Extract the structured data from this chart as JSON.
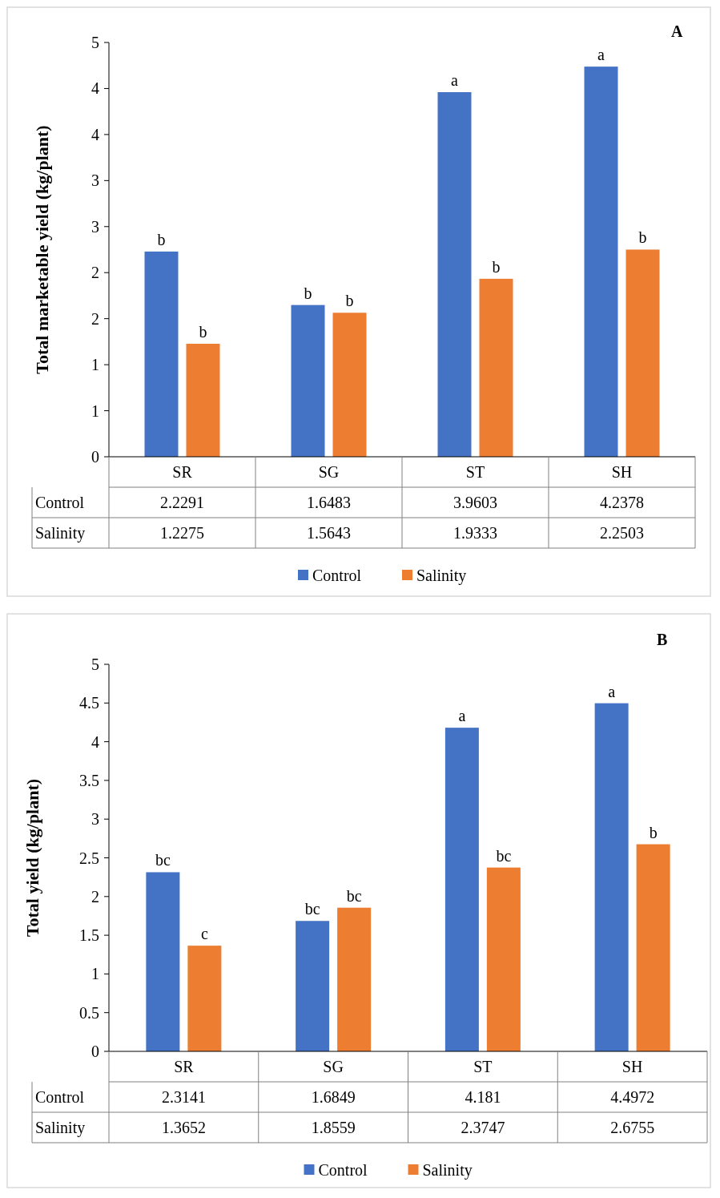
{
  "chart_data": [
    {
      "type": "bar",
      "title": "A",
      "ylabel": "Total marketable yield (kg/plant)",
      "categories": [
        "SR",
        "SG",
        "ST",
        "SH"
      ],
      "series": [
        {
          "name": "Control",
          "color": "#4472c4",
          "values": [
            2.2291,
            1.6483,
            3.9603,
            4.2378
          ]
        },
        {
          "name": "Salinity",
          "color": "#ed7d31",
          "values": [
            1.2275,
            1.5643,
            1.9333,
            2.2503
          ]
        }
      ],
      "ylim": [
        0,
        4.5
      ],
      "yticks": [
        0,
        {
          "value": 0.5,
          "label": "1"
        },
        1,
        {
          "value": 1.5,
          "label": "2"
        },
        2,
        {
          "value": 2.5,
          "label": "3"
        },
        3,
        {
          "value": 3.5,
          "label": "4"
        },
        4,
        {
          "value": 4.5,
          "label": "5"
        }
      ],
      "data_labels": true,
      "legend": "bottom",
      "annotations": [
        "b",
        "b",
        "b",
        "b",
        "a",
        "b",
        "a",
        "b"
      ]
    },
    {
      "type": "bar",
      "title": "B",
      "ylabel": "Total yield (kg/plant)",
      "categories": [
        "SR",
        "SG",
        "ST",
        "SH"
      ],
      "series": [
        {
          "name": "Control",
          "color": "#4472c4",
          "values": [
            2.3141,
            1.6849,
            4.181,
            4.4972
          ]
        },
        {
          "name": "Salinity",
          "color": "#ed7d31",
          "values": [
            1.3652,
            1.8559,
            2.3747,
            2.6755
          ]
        }
      ],
      "ylim": [
        0,
        5
      ],
      "yticks": [
        0,
        0.5,
        1,
        1.5,
        2,
        2.5,
        3,
        3.5,
        4,
        4.5,
        5
      ],
      "data_labels": true,
      "legend": "bottom",
      "annotations": [
        "bc",
        "c",
        "bc",
        "bc",
        "a",
        "bc",
        "a",
        "b"
      ]
    }
  ]
}
